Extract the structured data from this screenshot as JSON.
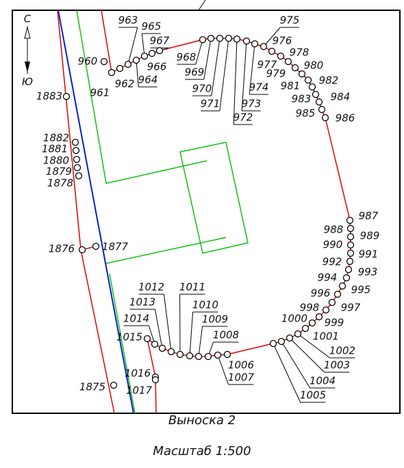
{
  "north": "С",
  "south": "Ю",
  "caption": {
    "title": "Выноска 2",
    "scale": "Масштаб 1:500"
  },
  "points": [
    "960",
    "961",
    "962",
    "963",
    "964",
    "965",
    "966",
    "967",
    "968",
    "969",
    "970",
    "971",
    "972",
    "973",
    "974",
    "975",
    "976",
    "977",
    "978",
    "979",
    "980",
    "981",
    "982",
    "983",
    "984",
    "985",
    "986",
    "987",
    "988",
    "989",
    "990",
    "991",
    "992",
    "993",
    "994",
    "995",
    "996",
    "997",
    "998",
    "999",
    "1000",
    "1001",
    "1002",
    "1003",
    "1004",
    "1005",
    "1006",
    "1007",
    "1008",
    "1009",
    "1010",
    "1011",
    "1012",
    "1013",
    "1014",
    "1015",
    "1016",
    "1017",
    "1875",
    "1876",
    "1877",
    "1878",
    "1879",
    "1880",
    "1881",
    "1882",
    "1883"
  ]
}
